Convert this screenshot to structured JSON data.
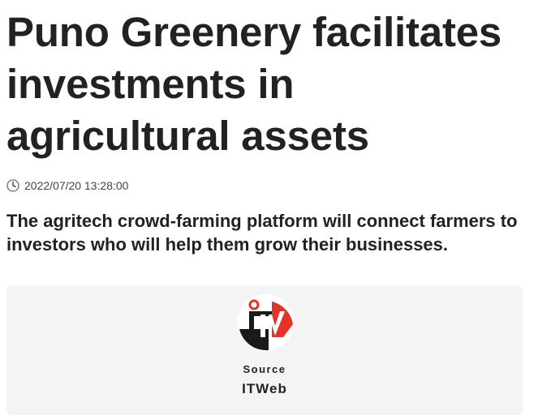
{
  "article": {
    "title": "Puno Greenery facilitates investments in agricultural assets",
    "timestamp": "2022/07/20 13:28:00",
    "summary": "The agritech crowd-farming platform will connect farmers to investors who will help them grow their businesses."
  },
  "source": {
    "label": "Source",
    "name": "ITWeb",
    "logo_text": "iTWeb",
    "logo_colors": {
      "ring": "#e63329",
      "dark": "#1a1a1a"
    }
  },
  "icons": {
    "timestamp": "clock-icon"
  }
}
